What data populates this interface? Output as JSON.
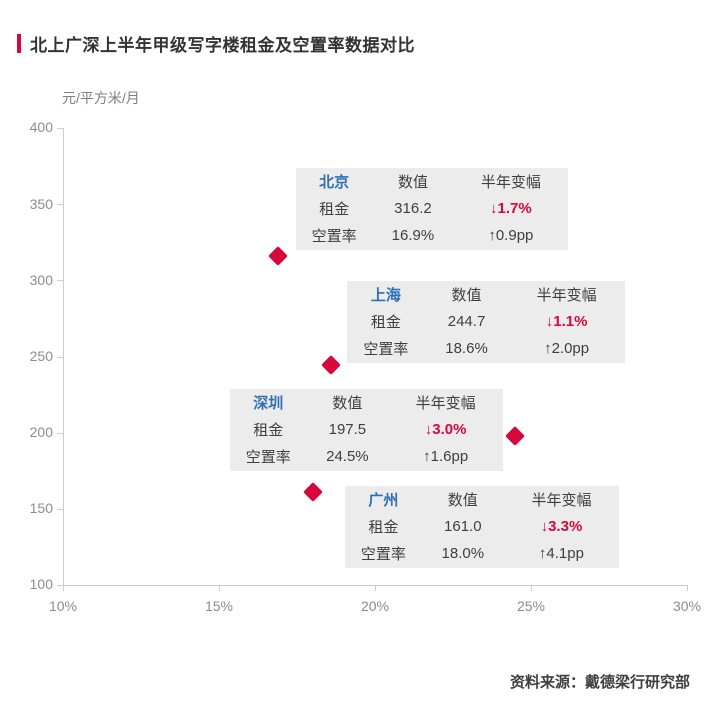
{
  "page": {
    "title": "北上广深上半年甲级写字楼租金及空置率数据对比",
    "y_axis_unit": "元/平方米/月",
    "source": "资料来源：戴德梁行研究部"
  },
  "colors": {
    "accent_red": "#d6083b",
    "city_blue": "#2e6fb6",
    "box_background": "#ececec",
    "text_dark": "#3f3f3f",
    "axis_text": "#8c8c8c"
  },
  "chart_data": {
    "type": "scatter",
    "title": "北上广深上半年甲级写字楼租金及空置率数据对比",
    "xlabel": "",
    "ylabel": "元/平方米/月",
    "xlim": [
      10,
      30
    ],
    "ylim": [
      100,
      400
    ],
    "x_tick_labels": [
      "10%",
      "15%",
      "20%",
      "25%",
      "30%"
    ],
    "y_tick_labels": [
      "400",
      "350",
      "300",
      "250",
      "200",
      "150",
      "100"
    ],
    "grid": false,
    "legend": "none",
    "marker": "diamond",
    "points": [
      {
        "city": "北京",
        "vacancy_pct": 16.9,
        "rent": 316.2,
        "rent_change_pct": -1.7,
        "vacancy_change_pp": 0.9
      },
      {
        "city": "上海",
        "vacancy_pct": 18.6,
        "rent": 244.7,
        "rent_change_pct": -1.1,
        "vacancy_change_pp": 2.0
      },
      {
        "city": "深圳",
        "vacancy_pct": 24.5,
        "rent": 197.5,
        "rent_change_pct": -3.0,
        "vacancy_change_pp": 1.6
      },
      {
        "city": "广州",
        "vacancy_pct": 18.0,
        "rent": 161.0,
        "rent_change_pct": -3.3,
        "vacancy_change_pp": 4.1
      }
    ]
  },
  "tables": [
    {
      "city": "北京",
      "col_value": "数值",
      "col_change": "半年变幅",
      "rent_label": "租金",
      "rent_value": "316.2",
      "rent_change": "↓1.7%",
      "vacancy_label": "空置率",
      "vacancy_value": "16.9%",
      "vacancy_change": "↑0.9pp"
    },
    {
      "city": "上海",
      "col_value": "数值",
      "col_change": "半年变幅",
      "rent_label": "租金",
      "rent_value": "244.7",
      "rent_change": "↓1.1%",
      "vacancy_label": "空置率",
      "vacancy_value": "18.6%",
      "vacancy_change": "↑2.0pp"
    },
    {
      "city": "深圳",
      "col_value": "数值",
      "col_change": "半年变幅",
      "rent_label": "租金",
      "rent_value": "197.5",
      "rent_change": "↓3.0%",
      "vacancy_label": "空置率",
      "vacancy_value": "24.5%",
      "vacancy_change": "↑1.6pp"
    },
    {
      "city": "广州",
      "col_value": "数值",
      "col_change": "半年变幅",
      "rent_label": "租金",
      "rent_value": "161.0",
      "rent_change": "↓3.3%",
      "vacancy_label": "空置率",
      "vacancy_value": "18.0%",
      "vacancy_change": "↑4.1pp"
    }
  ]
}
